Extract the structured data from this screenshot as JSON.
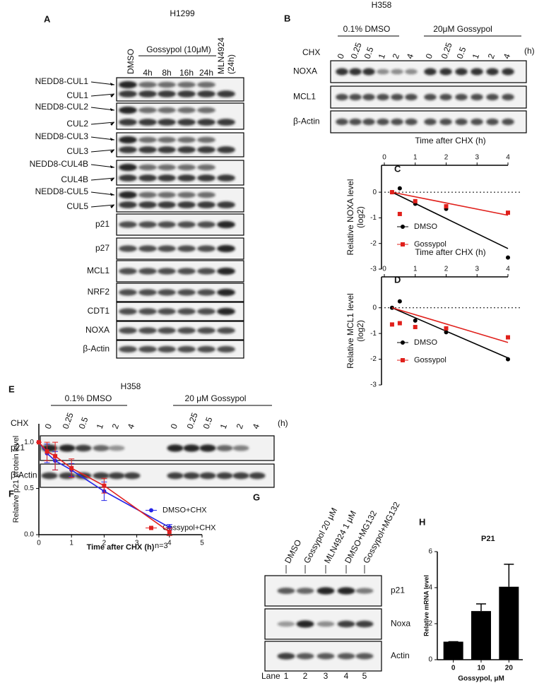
{
  "panel_a": {
    "label": "A",
    "title": "H1299",
    "header": {
      "control": "DMSO",
      "treatment": "Gossypol (10μM)",
      "times": [
        "4h",
        "8h",
        "16h",
        "24h"
      ],
      "inhibitor": [
        "MLN4924",
        "(24h)"
      ]
    },
    "rows": [
      [
        "NEDD8-CUL1",
        "CUL1"
      ],
      [
        "NEDD8-CUL2",
        "CUL2"
      ],
      [
        "NEDD8-CUL3",
        "CUL3"
      ],
      [
        "NEDD8-CUL4B",
        "CUL4B"
      ],
      [
        "NEDD8-CUL5",
        "CUL5"
      ],
      [
        "p21"
      ],
      [
        "p27"
      ],
      [
        "MCL1"
      ],
      [
        "NRF2"
      ],
      [
        "CDT1"
      ],
      [
        "NOXA"
      ],
      [
        "β-Actin"
      ]
    ]
  },
  "panel_b": {
    "label": "B",
    "title": "H358",
    "groups": [
      "0.1% DMSO",
      "20μM Gossypol"
    ],
    "treatment": "CHX",
    "times": [
      "0",
      "0.25",
      "0.5",
      "1",
      "2",
      "4"
    ],
    "unit": "(h)",
    "rows": [
      "NOXA",
      "MCL1",
      "β-Actin"
    ]
  },
  "panel_e": {
    "label": "E",
    "title": "H358",
    "groups": [
      "0.1% DMSO",
      "20 μM Gossypol"
    ],
    "treatment": "CHX",
    "times": [
      "0",
      "0.25",
      "0.5",
      "1",
      "2",
      "4"
    ],
    "unit": "(h)",
    "rows": [
      "p21",
      "β-Actin"
    ]
  },
  "panel_g": {
    "label": "G",
    "lanes": [
      "DMSO",
      "Gossypol 20 μM",
      "MLN4924 1 μM",
      "DMSO+MG132",
      "Gossypol+MG132"
    ],
    "lane_title": "Lane",
    "lane_numbers": [
      "1",
      "2",
      "3",
      "4",
      "5"
    ],
    "rows": [
      "p21",
      "Noxa",
      "Actin"
    ]
  },
  "chart_data": [
    {
      "type": "scatter",
      "label": "C",
      "xlabel": "Time after CHX (h)",
      "ylabel": [
        "Relative NOXA level",
        "(log2)"
      ],
      "xlim": [
        0,
        4
      ],
      "ylim": [
        -3,
        1.05
      ],
      "xticks": [
        0,
        1,
        2,
        3,
        4
      ],
      "yticks": [
        0,
        -1,
        -2,
        -3
      ],
      "x_axis": "top",
      "zero_line": true,
      "legend": "bottom-left",
      "series": [
        {
          "name": "DMSO",
          "color": "#000000",
          "marker": "circle",
          "x": [
            0.25,
            0.5,
            1,
            2,
            4
          ],
          "values": [
            0,
            0.15,
            -0.45,
            -0.65,
            -2.55
          ],
          "fit_x": [
            0.25,
            4
          ],
          "fit": [
            0,
            -2.2
          ]
        },
        {
          "name": "Gossypol",
          "color": "#e0201b",
          "marker": "square",
          "x": [
            0.25,
            0.5,
            1,
            2,
            4
          ],
          "values": [
            0,
            -0.85,
            -0.35,
            -0.55,
            -0.8
          ],
          "fit_x": [
            0.25,
            4
          ],
          "fit": [
            0,
            -0.9
          ]
        }
      ]
    },
    {
      "type": "scatter",
      "label": "D",
      "xlabel": "Time after CHX (h)",
      "ylabel": [
        "Relative MCL1 level",
        "(log2)"
      ],
      "xlim": [
        0,
        4
      ],
      "ylim": [
        -3,
        1.2
      ],
      "xticks": [
        0,
        1,
        2,
        3,
        4
      ],
      "yticks": [
        0,
        -1,
        -2,
        -3
      ],
      "x_axis": "top",
      "zero_line": true,
      "legend": "bottom-left",
      "series": [
        {
          "name": "DMSO",
          "color": "#000000",
          "marker": "circle",
          "x": [
            0.25,
            0.5,
            1,
            2,
            4
          ],
          "values": [
            0,
            0.25,
            -0.5,
            -0.95,
            -2.0
          ],
          "fit_x": [
            0.25,
            4
          ],
          "fit": [
            0,
            -1.95
          ]
        },
        {
          "name": "Gossypol",
          "color": "#e0201b",
          "marker": "square",
          "x": [
            0.25,
            0.5,
            1,
            2,
            4
          ],
          "values": [
            -0.65,
            -0.6,
            -0.75,
            -0.8,
            -1.15
          ],
          "fit_x": [
            0.25,
            4
          ],
          "fit": [
            0,
            -1.35
          ]
        }
      ]
    },
    {
      "type": "line",
      "label": "F",
      "xlabel": "Time after CHX (h)",
      "ylabel": "Relative p21 protein level",
      "xlim": [
        0,
        5
      ],
      "ylim": [
        0,
        1.2
      ],
      "xticks": [
        0,
        1,
        2,
        3,
        4,
        5
      ],
      "yticks": [
        {
          "value": 0,
          "label": "0.0"
        },
        0.5,
        {
          "value": 1,
          "label": "1.0"
        }
      ],
      "legend": "right",
      "annotation": "n=3",
      "series": [
        {
          "name": "DMSO+CHX",
          "color": "#2424e8",
          "marker": "circle",
          "x": [
            0,
            0.25,
            0.5,
            1,
            2,
            4
          ],
          "values": [
            1,
            0.88,
            0.8,
            0.7,
            0.47,
            0.08
          ],
          "errors": [
            0,
            0.1,
            0.1,
            0.07,
            0.1,
            0.03
          ]
        },
        {
          "name": "Gossypol+CHX",
          "color": "#e02020",
          "marker": "square",
          "x": [
            0,
            0.25,
            0.5,
            1,
            2,
            4
          ],
          "values": [
            1,
            0.9,
            0.85,
            0.72,
            0.53,
            0.03
          ],
          "errors": [
            0,
            0.1,
            0.15,
            0.1,
            0.08,
            0.04
          ]
        }
      ]
    },
    {
      "type": "bar",
      "label": "H",
      "title": "P21",
      "xlabel": "Gossypol, μM",
      "ylabel": "Relative mRNA level",
      "categories": [
        "0",
        "10",
        "20"
      ],
      "values": [
        1,
        2.7,
        4.05
      ],
      "errors": [
        0,
        0.4,
        1.25
      ],
      "color": "#000000",
      "ylim": [
        0,
        6
      ],
      "yticks": [
        0,
        2,
        4,
        6
      ]
    }
  ]
}
